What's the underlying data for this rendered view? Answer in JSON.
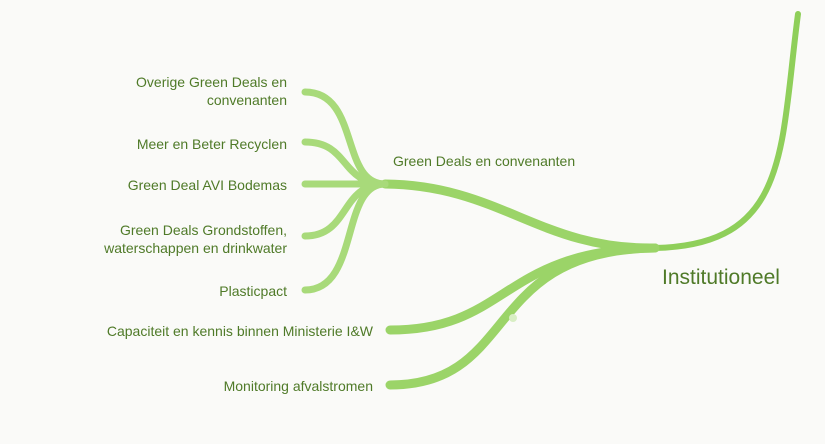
{
  "root": {
    "label": "Institutioneel"
  },
  "branches": [
    {
      "label": "Green Deals en convenanten",
      "children": [
        "Overige Green Deals en convenanten",
        "Meer en Beter Recyclen",
        "Green Deal AVI Bodemas",
        "Green Deals Grondstoffen, waterschappen en drinkwater",
        "Plasticpact"
      ]
    },
    {
      "label": "Capaciteit en kennis binnen Ministerie I&W"
    },
    {
      "label": "Monitoring afvalstromen"
    }
  ]
}
